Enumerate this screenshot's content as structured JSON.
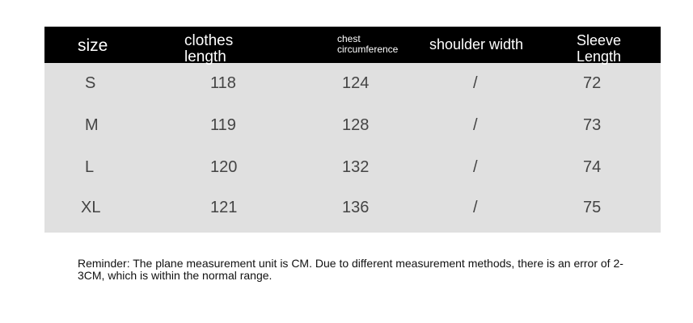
{
  "headers": {
    "size": "size",
    "clothes_length": [
      "clothes",
      "length"
    ],
    "chest": [
      "chest",
      "circumference"
    ],
    "shoulder": "shoulder width",
    "sleeve": [
      "Sleeve",
      "Length"
    ]
  },
  "rows": [
    {
      "size": "S",
      "clothes_length": "118",
      "chest": "124",
      "shoulder": "/",
      "sleeve": "72"
    },
    {
      "size": "M",
      "clothes_length": "119",
      "chest": "128",
      "shoulder": "/",
      "sleeve": "73"
    },
    {
      "size": "L",
      "clothes_length": "120",
      "chest": "132",
      "shoulder": "/",
      "sleeve": "74"
    },
    {
      "size": "XL",
      "clothes_length": "121",
      "chest": "136",
      "shoulder": "/",
      "sleeve": "75"
    }
  ],
  "reminder": "Reminder: The plane measurement unit is CM. Due to different measurement methods, there is an error of 2-3CM, which is within the normal range."
}
